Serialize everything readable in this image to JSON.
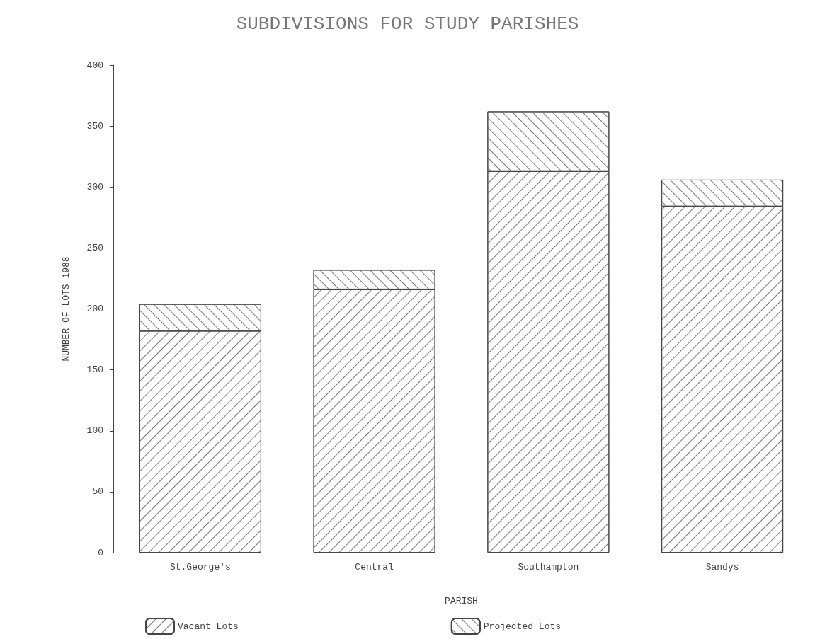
{
  "chart_data": {
    "type": "bar",
    "title": "SUBDIVISIONS FOR STUDY PARISHES",
    "xlabel": "PARISH",
    "ylabel": "NUMBER OF LOTS 1988",
    "categories": [
      "St.George's",
      "Central",
      "Southampton",
      "Sandys"
    ],
    "series": [
      {
        "name": "Vacant Lots",
        "color": "#ffffff",
        "values": [
          182,
          216,
          313,
          284
        ]
      },
      {
        "name": "Projected Lots",
        "color": "#ffffff",
        "values": [
          22,
          16,
          49,
          22
        ]
      }
    ],
    "stacked": true,
    "ylim": [
      0,
      400
    ],
    "yticks": [
      0,
      50,
      100,
      150,
      200,
      250,
      300,
      350,
      400
    ],
    "grid": false,
    "legend": "bottom left"
  }
}
